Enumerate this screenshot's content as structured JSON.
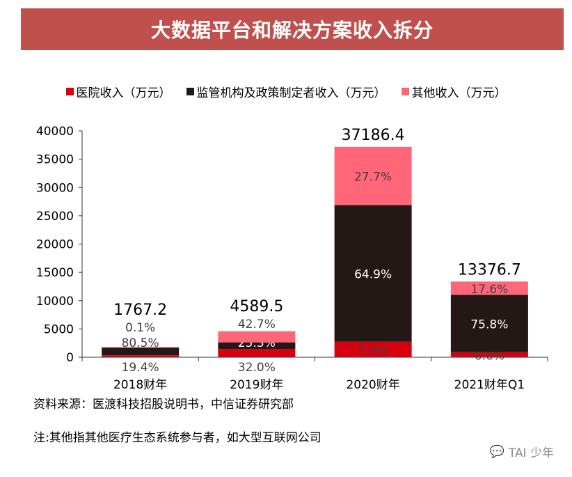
{
  "title": "大数据平台和解决方案收入拆分",
  "source": "资料来源：医渡科技招股说明书，中信证券研究部",
  "note": "注:其他指其他医疗生态系统参与者，如大型互联网公司",
  "watermark": {
    "icon": "wechat-icon",
    "text": "TAI 少年"
  },
  "chart_data": {
    "type": "bar",
    "stacked": true,
    "categories": [
      "2018财年",
      "2019财年",
      "2020财年",
      "2021财年Q1"
    ],
    "totals": [
      "1767.2",
      "4589.5",
      "37186.4",
      "13376.7"
    ],
    "series": [
      {
        "name": "医院收入（万元）",
        "color": "#d7000f",
        "values": [
          342.8,
          1468.6,
          2751.8,
          882.9
        ],
        "labels": [
          "19.4%",
          "32.0%",
          "7.4%",
          "6.6%"
        ]
      },
      {
        "name": "监管机构及政策制定者收入（万元）",
        "color": "#231815",
        "values": [
          1422.6,
          1161.2,
          24134.0,
          10139.5
        ],
        "labels": [
          "80.5%",
          "25.3%",
          "64.9%",
          "75.8%"
        ]
      },
      {
        "name": "其他收入（万元）",
        "color": "#ff6678",
        "values": [
          1.8,
          1959.7,
          10300.6,
          2354.3
        ],
        "labels": [
          "0.1%",
          "42.7%",
          "27.7%",
          "17.6%"
        ]
      }
    ],
    "ylim": [
      0,
      40000
    ],
    "yticks": [
      "0",
      "5000",
      "10000",
      "15000",
      "20000",
      "25000",
      "30000",
      "35000",
      "40000"
    ],
    "grid": false,
    "legend": "top"
  }
}
